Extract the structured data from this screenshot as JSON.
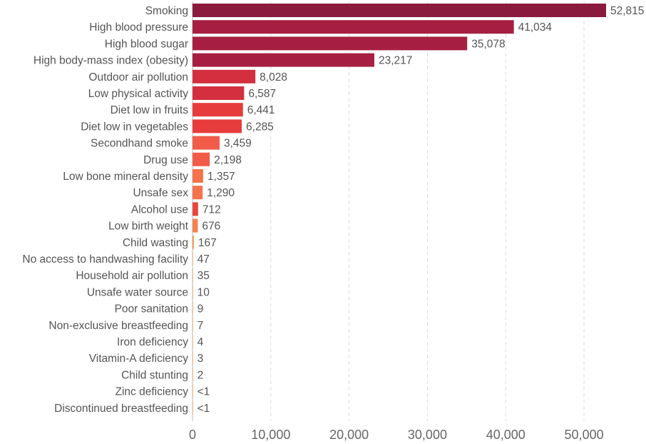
{
  "chart_data": {
    "type": "bar",
    "orientation": "horizontal",
    "title": "",
    "xlabel": "",
    "ylabel": "",
    "xlim": [
      0,
      55000
    ],
    "x_ticks": [
      0,
      10000,
      20000,
      30000,
      40000,
      50000
    ],
    "x_tick_labels": [
      "0",
      "10,000",
      "20,000",
      "30,000",
      "40,000",
      "50,000"
    ],
    "grid": true,
    "legend": "none",
    "categories": [
      "Smoking",
      "High blood pressure",
      "High blood sugar",
      "High body-mass index (obesity)",
      "Outdoor air pollution",
      "Low physical activity",
      "Diet low in fruits",
      "Diet low in vegetables",
      "Secondhand smoke",
      "Drug use",
      "Low bone mineral density",
      "Unsafe sex",
      "Alcohol use",
      "Low birth weight",
      "Child wasting",
      "No access to handwashing facility",
      "Household air pollution",
      "Unsafe water source",
      "Poor sanitation",
      "Non-exclusive breastfeeding",
      "Iron deficiency",
      "Vitamin-A deficiency",
      "Child stunting",
      "Zinc deficiency",
      "Discontinued breastfeeding"
    ],
    "values": [
      52815,
      41034,
      35078,
      23217,
      8028,
      6587,
      6441,
      6285,
      3459,
      2198,
      1357,
      1290,
      712,
      676,
      167,
      47,
      35,
      10,
      9,
      7,
      4,
      3,
      2,
      0.5,
      0.5
    ],
    "value_labels": [
      "52,815",
      "41,034",
      "35,078",
      "23,217",
      "8,028",
      "6,587",
      "6,441",
      "6,285",
      "3,459",
      "2,198",
      "1,357",
      "1,290",
      "712",
      "676",
      "167",
      "47",
      "35",
      "10",
      "9",
      "7",
      "4",
      "3",
      "2",
      "<1",
      "<1"
    ],
    "colors": [
      "#8b1a3f",
      "#a61f42",
      "#a61f42",
      "#a61f42",
      "#d32f3f",
      "#d32f3f",
      "#e73c3c",
      "#e73c3c",
      "#f15c49",
      "#f15c49",
      "#f5724d",
      "#f5724d",
      "#e8453c",
      "#f5834e",
      "#f7923f",
      "#f7923f",
      "#f7923f",
      "#f7923f",
      "#f7923f",
      "#f7923f",
      "#f7923f",
      "#f7923f",
      "#f7923f",
      "#f7923f",
      "#f7923f"
    ]
  }
}
